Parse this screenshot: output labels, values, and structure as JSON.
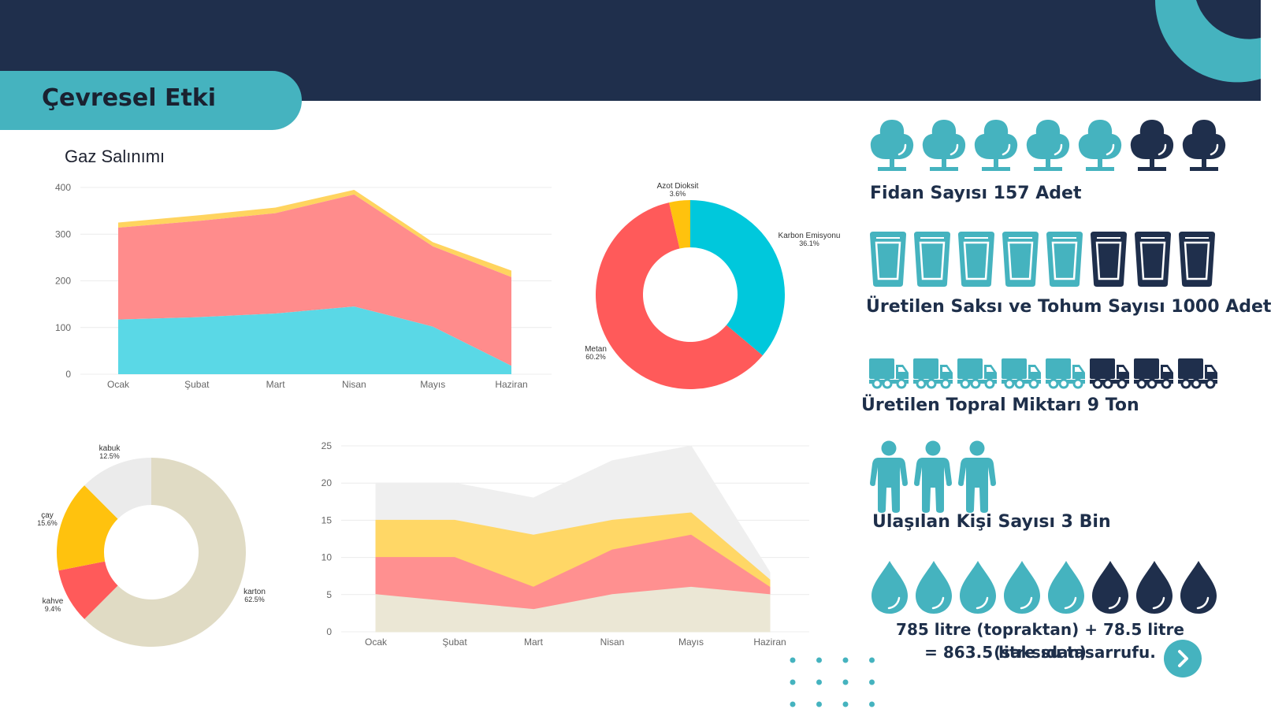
{
  "header": {
    "title": "Çevresel Etki"
  },
  "colors": {
    "navy": "#1f2f4c",
    "teal": "#45b3bf",
    "dark_icon": "#1f2f4c"
  },
  "chart_data": [
    {
      "type": "area",
      "stacked": true,
      "title": "Gaz Salınımı",
      "categories": [
        "Ocak",
        "Şubat",
        "Mart",
        "Nisan",
        "Mayıs",
        "Haziran"
      ],
      "ylim": [
        0,
        400
      ],
      "yticks": [
        0,
        100,
        200,
        300,
        400
      ],
      "grid": true,
      "series": [
        {
          "values": [
            117,
            122,
            130,
            145,
            102,
            18
          ],
          "color": "#5ad8e6"
        },
        {
          "values": [
            197,
            206,
            215,
            240,
            172,
            190
          ],
          "color": "#ff8c8c"
        },
        {
          "values": [
            11,
            12,
            12,
            10,
            9,
            14
          ],
          "color": "#ffd45f"
        }
      ]
    },
    {
      "type": "pie",
      "donut": true,
      "slices": [
        {
          "label": "Karbon Emisyonu",
          "value": 36.1,
          "pct": "36.1%",
          "color": "#00c8dc"
        },
        {
          "label": "Metan",
          "value": 60.2,
          "pct": "60.2%",
          "color": "#ff5a5a"
        },
        {
          "label": "Azot Dioksit",
          "value": 3.6,
          "pct": "3.6%",
          "color": "#ffc20e"
        }
      ]
    },
    {
      "type": "pie",
      "donut": true,
      "slices": [
        {
          "label": "karton",
          "value": 62.5,
          "pct": "62.5%",
          "color": "#e0dbc4"
        },
        {
          "label": "kahve",
          "value": 9.4,
          "pct": "9.4%",
          "color": "#ff5a5a"
        },
        {
          "label": "çay",
          "value": 15.6,
          "pct": "15.6%",
          "color": "#ffc20e"
        },
        {
          "label": "kabuk",
          "value": 12.5,
          "pct": "12.5%",
          "color": "#ebebeb"
        }
      ]
    },
    {
      "type": "area",
      "stacked": false,
      "categories": [
        "Ocak",
        "Şubat",
        "Mart",
        "Nisan",
        "Mayıs",
        "Haziran"
      ],
      "ylim": [
        0,
        25
      ],
      "yticks": [
        0,
        5,
        10,
        15,
        20,
        25
      ],
      "grid": true,
      "series": [
        {
          "values": [
            20,
            20,
            18,
            23,
            25,
            8
          ],
          "color": "#efefef"
        },
        {
          "values": [
            15,
            15,
            13,
            15,
            16,
            7
          ],
          "color": "#ffd766"
        },
        {
          "values": [
            10,
            10,
            6,
            11,
            13,
            6
          ],
          "color": "#ff9090"
        },
        {
          "values": [
            5,
            4,
            3,
            5,
            6,
            5
          ],
          "color": "#ebe7d5"
        }
      ]
    }
  ],
  "stats": {
    "trees": {
      "label": "Fidan Sayısı 157 Adet",
      "total": 7,
      "filled": 5,
      "icon": "tree-icon"
    },
    "pots": {
      "label": "Üretilen Saksı ve Tohum Sayısı 1000 Adet",
      "total": 8,
      "filled": 5,
      "icon": "cup-icon"
    },
    "trucks": {
      "label": "Üretilen Topral Miktarı 9 Ton",
      "total": 8,
      "filled": 5,
      "icon": "truck-icon"
    },
    "people": {
      "label": "Ulaşılan Kişi Sayısı 3 Bin",
      "total": 3,
      "filled": 3,
      "icon": "person-icon"
    },
    "water": {
      "line1": "785 litre (topraktan) + 78.5 litre (saksıdan)",
      "line2": "= 863.5 litre su tasarrufu.",
      "total": 8,
      "filled": 5,
      "icon": "water-drop-icon"
    }
  },
  "navigation": {
    "next_icon": "chevron-right-icon"
  }
}
